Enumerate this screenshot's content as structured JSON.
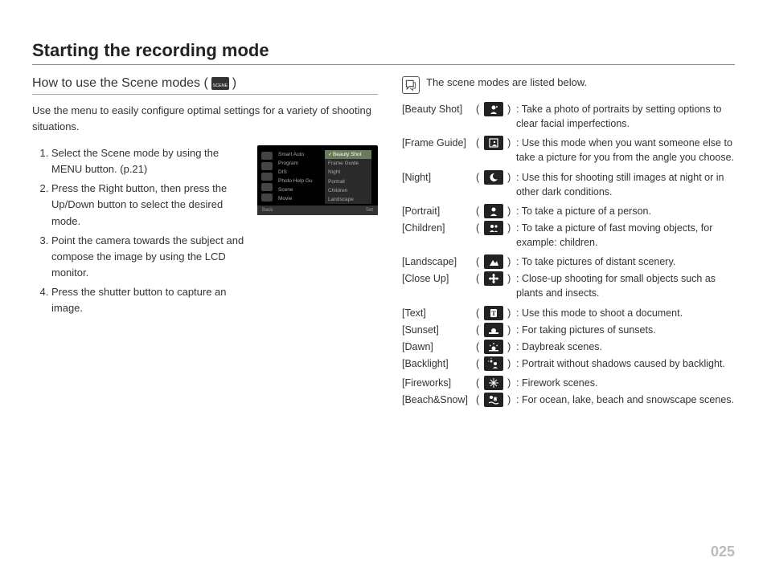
{
  "page_title": "Starting the recording mode",
  "page_number": "025",
  "left": {
    "section_title_prefix": "How to use the Scene modes (",
    "section_title_suffix": " )",
    "intro": "Use the menu to easily configure optimal settings for a variety of shooting situations.",
    "steps": [
      "Select the Scene mode by using the MENU button. (p.21)",
      "Press the Right button, then press the Up/Down button to select the desired mode.",
      "Point the camera towards the subject and compose the image by using the LCD monitor.",
      "Press the shutter button to capture an image."
    ],
    "menu_mock": {
      "mid_items": [
        "Smart Auto",
        "Program",
        "DIS",
        "Photo Help Gu",
        "Scene",
        "Movie"
      ],
      "right_items": [
        "Beauty Shot",
        "Frame Guide",
        "Night",
        "Portrait",
        "Children",
        "Landscape"
      ],
      "selected_index": 0,
      "footer_left": "Back",
      "footer_right": "Set"
    }
  },
  "right": {
    "note_text": "The scene modes are listed below.",
    "modes": [
      {
        "label": "[Beauty Shot]",
        "icon": "beauty",
        "desc": "Take a photo of portraits by setting options to clear facial imperfections."
      },
      {
        "label": "[Frame Guide]",
        "icon": "frame",
        "desc": "Use this mode when you want someone else to take a picture for you from the angle you choose."
      },
      {
        "label": "[Night]",
        "icon": "night",
        "desc": "Use this for shooting still images at night or in other dark conditions."
      },
      {
        "label": "[Portrait]",
        "icon": "portrait",
        "desc": "To take a picture of a person.",
        "tight": true
      },
      {
        "label": "[Children]",
        "icon": "children",
        "desc": "To take a picture of fast moving objects, for example: children."
      },
      {
        "label": "[Landscape]",
        "icon": "landscape",
        "desc": "To take pictures of distant scenery.",
        "tight": true
      },
      {
        "label": "[Close Up]",
        "icon": "closeup",
        "desc": "Close-up shooting for small objects such as plants and insects."
      },
      {
        "label": "[Text]",
        "icon": "text",
        "desc": "Use this mode to shoot a document.",
        "tight": true
      },
      {
        "label": "[Sunset]",
        "icon": "sunset",
        "desc": "For taking pictures of sunsets.",
        "tight": true
      },
      {
        "label": "[Dawn]",
        "icon": "dawn",
        "desc": "Daybreak scenes.",
        "tight": true
      },
      {
        "label": "[Backlight]",
        "icon": "backlight",
        "desc": "Portrait without shadows caused by backlight."
      },
      {
        "label": "[Fireworks]",
        "icon": "fireworks",
        "desc": "Firework scenes.",
        "tight": true
      },
      {
        "label": "[Beach&Snow]",
        "icon": "beachsnow",
        "desc": "For ocean, lake, beach and snowscape scenes."
      }
    ]
  },
  "colors": {
    "text": "#333333",
    "rule": "#888888",
    "icon_bg": "#222222",
    "page_num": "#bbbbbb",
    "menu_bg": "#000000",
    "menu_sel": "#6a7a5a"
  }
}
